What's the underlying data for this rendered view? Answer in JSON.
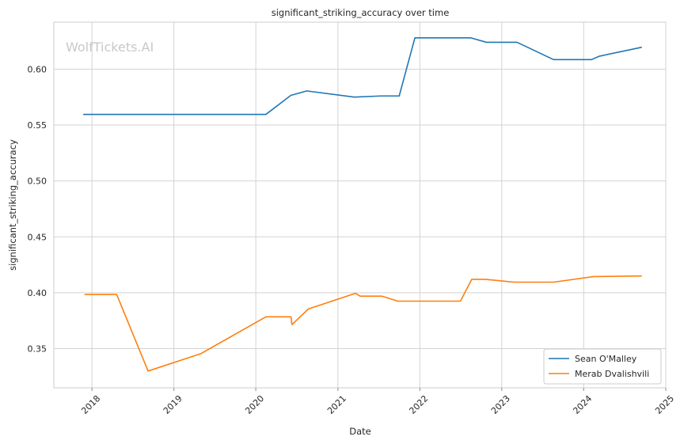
{
  "watermark": "WolfTickets.AI",
  "chart_data": {
    "type": "line",
    "title": "significant_striking_accuracy over time",
    "xlabel": "Date",
    "ylabel": "significant_striking_accuracy",
    "xlim": [
      "2017-07-15",
      "2025-01-01"
    ],
    "ylim": [
      0.315,
      0.642
    ],
    "x_ticks": [
      "2018",
      "2019",
      "2020",
      "2021",
      "2022",
      "2023",
      "2024",
      "2025"
    ],
    "y_ticks": [
      "0.35",
      "0.40",
      "0.45",
      "0.50",
      "0.55",
      "0.60"
    ],
    "grid": true,
    "legend_position": "bottom-right",
    "series": [
      {
        "name": "Sean O'Malley",
        "color": "#1f77b4",
        "points": [
          [
            "2017-11-25",
            0.5595
          ],
          [
            "2020-02-15",
            0.5595
          ],
          [
            "2020-06-05",
            0.5765
          ],
          [
            "2020-08-15",
            0.5805
          ],
          [
            "2021-03-15",
            0.575
          ],
          [
            "2021-07-10",
            0.576
          ],
          [
            "2021-10-01",
            0.576
          ],
          [
            "2021-12-10",
            0.628
          ],
          [
            "2022-08-15",
            0.628
          ],
          [
            "2022-10-25",
            0.624
          ],
          [
            "2023-03-10",
            0.624
          ],
          [
            "2023-08-20",
            0.6085
          ],
          [
            "2024-02-05",
            0.6085
          ],
          [
            "2024-03-10",
            0.6115
          ],
          [
            "2024-09-14",
            0.6195
          ]
        ]
      },
      {
        "name": "Merab Dvalishvili",
        "color": "#ff7f0e",
        "points": [
          [
            "2017-12-01",
            0.3985
          ],
          [
            "2018-04-21",
            0.3985
          ],
          [
            "2018-09-08",
            0.33
          ],
          [
            "2019-05-01",
            0.3455
          ],
          [
            "2020-02-15",
            0.3785
          ],
          [
            "2020-06-06",
            0.3785
          ],
          [
            "2020-06-10",
            0.3715
          ],
          [
            "2020-08-22",
            0.3855
          ],
          [
            "2021-03-20",
            0.3995
          ],
          [
            "2021-04-10",
            0.397
          ],
          [
            "2021-07-15",
            0.397
          ],
          [
            "2021-09-25",
            0.3925
          ],
          [
            "2022-07-01",
            0.3925
          ],
          [
            "2022-08-20",
            0.412
          ],
          [
            "2022-10-20",
            0.412
          ],
          [
            "2023-02-25",
            0.4095
          ],
          [
            "2023-08-20",
            0.4095
          ],
          [
            "2024-02-15",
            0.4145
          ],
          [
            "2024-09-14",
            0.415
          ]
        ]
      }
    ]
  }
}
